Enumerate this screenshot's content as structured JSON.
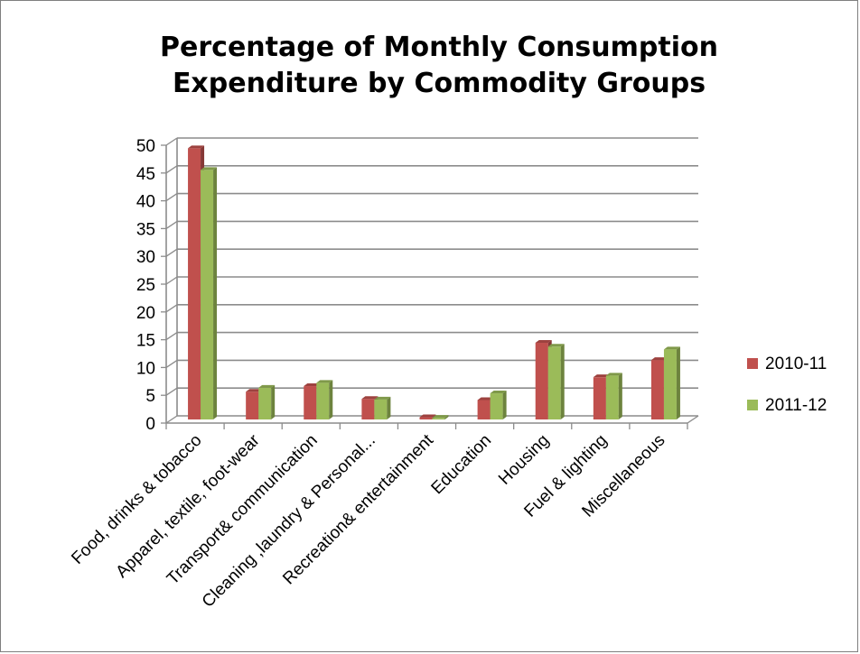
{
  "chart_data": {
    "type": "bar",
    "title": "Percentage of Monthly Consumption\nExpenditure by Commodity Groups",
    "xlabel": "",
    "ylabel": "",
    "ylim": [
      0,
      50
    ],
    "yticks": [
      0,
      5,
      10,
      15,
      20,
      25,
      30,
      35,
      40,
      45,
      50
    ],
    "grid": true,
    "legend_position": "right",
    "categories": [
      "Food, drinks & tobacco",
      "Apparel, textile, foot-wear",
      "Transport& communication",
      "Cleaning ,laundry & Personal...",
      "Recreation& entertainment",
      "Education",
      "Housing",
      "Fuel & lighting",
      "Miscellaneous"
    ],
    "series": [
      {
        "name": "2010-11",
        "color": "#c0504d",
        "values": [
          48.8,
          5.0,
          6.0,
          3.7,
          0.4,
          3.5,
          13.8,
          7.6,
          10.7
        ]
      },
      {
        "name": "2011-12",
        "color": "#9bbb59",
        "values": [
          44.9,
          5.7,
          6.6,
          3.6,
          0.3,
          4.7,
          13.1,
          7.9,
          12.6
        ]
      }
    ]
  }
}
